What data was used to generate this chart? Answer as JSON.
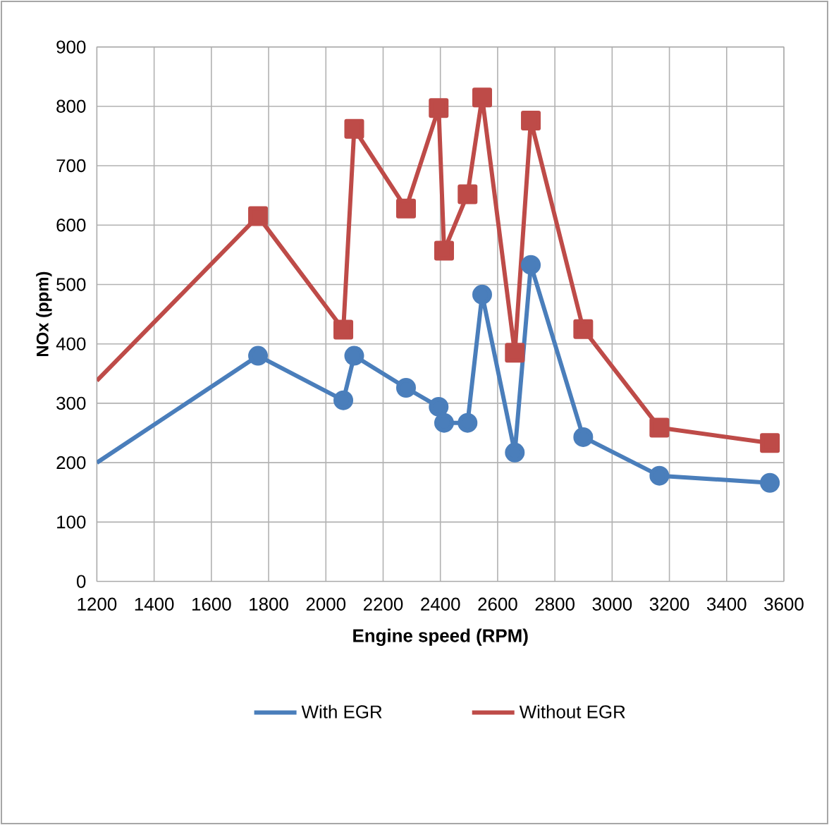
{
  "chart_data": {
    "type": "line",
    "xlabel": "Engine speed (RPM)",
    "ylabel": "NOx (ppm)",
    "xlim": [
      1200,
      3600
    ],
    "xticks": [
      1200,
      1400,
      1600,
      1800,
      2000,
      2200,
      2400,
      2600,
      2800,
      3000,
      3200,
      3400,
      3600
    ],
    "ylim": [
      0,
      900
    ],
    "yticks": [
      0,
      100,
      200,
      300,
      400,
      500,
      600,
      700,
      800,
      900
    ],
    "grid": true,
    "legend": "bottom",
    "x": [
      1200,
      1763,
      2061,
      2099,
      2280,
      2394,
      2413,
      2495,
      2546,
      2660,
      2716,
      2899,
      3165,
      3551
    ],
    "series": [
      {
        "name": "With EGR",
        "color": "#4a7ebb",
        "marker": "circle",
        "values": [
          200,
          380,
          305,
          380,
          326,
          294,
          267,
          267,
          483,
          217,
          533,
          243,
          178,
          166
        ]
      },
      {
        "name": "Without EGR",
        "color": "#be4b48",
        "marker": "square",
        "values": [
          338,
          615,
          424,
          762,
          628,
          797,
          557,
          652,
          815,
          385,
          776,
          425,
          259,
          233
        ]
      }
    ]
  }
}
